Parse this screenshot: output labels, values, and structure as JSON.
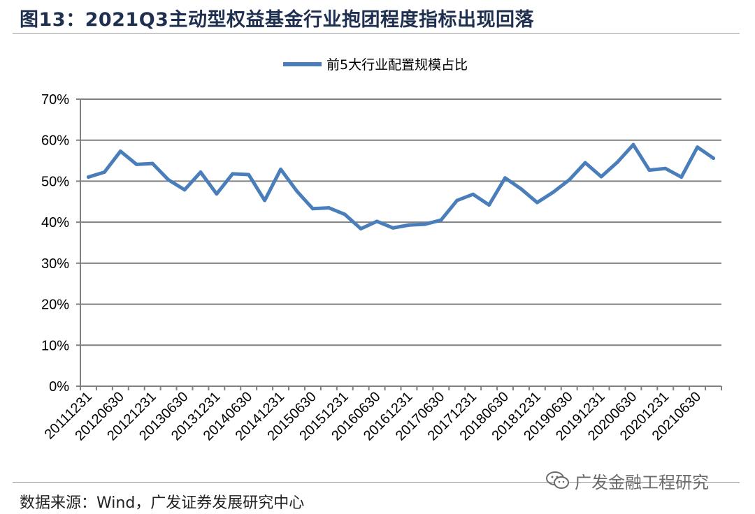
{
  "figure": {
    "title": "图13：2021Q3主动型权益基金行业抱团程度指标出现回落",
    "source": "数据来源：Wind，广发证券发展研究中心",
    "watermark": "广发金融工程研究",
    "watermark_icon": "wechat-icon"
  },
  "colors": {
    "line": "#4a7ebb",
    "grid": "#808080",
    "title": "#1f2f4f"
  },
  "chart_data": {
    "type": "line",
    "title": "",
    "xlabel": "",
    "ylabel": "",
    "ylim": [
      0,
      70
    ],
    "yticks": [
      "0%",
      "10%",
      "20%",
      "30%",
      "40%",
      "50%",
      "60%",
      "70%"
    ],
    "ytick_values": [
      0,
      10,
      20,
      30,
      40,
      50,
      60,
      70
    ],
    "grid": true,
    "legend_position": "top-center",
    "x": [
      "20111231",
      "20120331",
      "20120630",
      "20120930",
      "20121231",
      "20130331",
      "20130630",
      "20130930",
      "20131231",
      "20140331",
      "20140630",
      "20140930",
      "20141231",
      "20150331",
      "20150630",
      "20150930",
      "20151231",
      "20160331",
      "20160630",
      "20160930",
      "20161231",
      "20170331",
      "20170630",
      "20170930",
      "20171231",
      "20180331",
      "20180630",
      "20180930",
      "20181231",
      "20190331",
      "20190630",
      "20190930",
      "20191231",
      "20200331",
      "20200630",
      "20200930",
      "20201231",
      "20210331",
      "20210630",
      "20210930"
    ],
    "xtick_labels": [
      "20111231",
      "20120630",
      "20121231",
      "20130630",
      "20131231",
      "20140630",
      "20141231",
      "20150630",
      "20151231",
      "20160630",
      "20161231",
      "20170630",
      "20171231",
      "20180630",
      "20181231",
      "20190630",
      "20191231",
      "20200630",
      "20201231",
      "20210630"
    ],
    "series": [
      {
        "name": "前5大行业配置规模占比",
        "values": [
          51.0,
          52.2,
          57.3,
          54.1,
          54.3,
          50.3,
          47.9,
          52.2,
          46.9,
          51.8,
          51.6,
          45.3,
          52.9,
          47.6,
          43.3,
          43.5,
          41.9,
          38.4,
          40.2,
          38.6,
          39.3,
          39.5,
          40.5,
          45.3,
          46.8,
          44.2,
          50.8,
          48.1,
          44.8,
          47.3,
          50.3,
          54.5,
          51.1,
          54.6,
          58.9,
          52.7,
          53.1,
          51.0,
          58.3,
          55.6
        ]
      }
    ]
  }
}
